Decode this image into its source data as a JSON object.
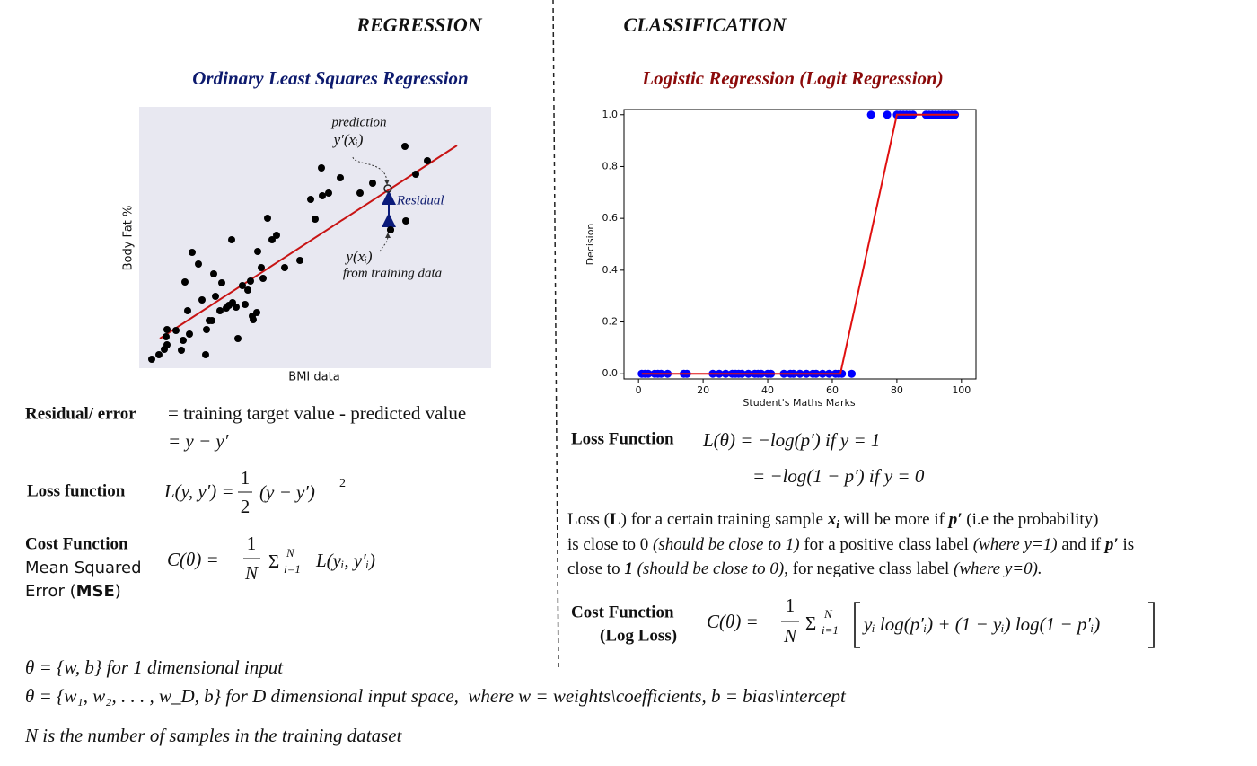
{
  "headers": {
    "left": "REGRESSION",
    "right": "CLASSIFICATION"
  },
  "chart_data": [
    {
      "type": "scatter",
      "title": "Ordinary Least Squares Regression",
      "x_label": "BMI data",
      "y_label": "Body Fat %",
      "xlim": [
        0,
        392
      ],
      "ylim": [
        0,
        291
      ],
      "background": "#e8e8f1",
      "color": "#000000",
      "x": [
        14,
        22,
        28,
        31,
        30,
        31,
        41,
        47,
        49,
        56,
        54,
        51,
        59,
        66,
        70,
        75,
        74,
        78,
        81,
        85,
        83,
        90,
        92,
        97,
        100,
        103,
        104,
        108,
        110,
        115,
        118,
        121,
        124,
        126,
        127,
        131,
        132,
        136,
        138,
        143,
        148,
        153,
        162,
        179,
        191,
        196,
        203,
        204,
        211,
        224,
        246,
        260,
        280,
        296,
        297,
        308,
        321
      ],
      "values": [
        10,
        15,
        21,
        26,
        35,
        43,
        42,
        20,
        31,
        38,
        64,
        96,
        129,
        116,
        76,
        43,
        15,
        53,
        53,
        80,
        105,
        64,
        95,
        67,
        70,
        143,
        73,
        68,
        33,
        92,
        71,
        87,
        97,
        58,
        54,
        62,
        130,
        112,
        100,
        167,
        143,
        148,
        112,
        120,
        188,
        166,
        223,
        192,
        195,
        212,
        195,
        206,
        154,
        247,
        164,
        216,
        231
      ],
      "fit_line": {
        "color": "#c81414",
        "x": [
          23,
          354
        ],
        "values": [
          33,
          248
        ]
      },
      "annotations": [
        "prediction",
        "y′(xᵢ)",
        "Residual",
        "y(xᵢ)",
        "from training data"
      ]
    },
    {
      "type": "scatter",
      "title": "Logistic Regression (Logit Regression)",
      "x_label": "Student's Maths Marks",
      "y_label": "Decision",
      "xlim": [
        -4.5,
        104.5
      ],
      "ylim": [
        -0.02,
        1.02
      ],
      "xticks": [
        0,
        20,
        40,
        60,
        80,
        100
      ],
      "yticks": [
        {
          "value": 0,
          "label": "0.0"
        },
        {
          "value": 0.2,
          "label": "0.2"
        },
        {
          "value": 0.4,
          "label": "0.4"
        },
        {
          "value": 0.6,
          "label": "0.6"
        },
        {
          "value": 0.8,
          "label": "0.8"
        },
        {
          "value": 1,
          "label": "1.0"
        }
      ],
      "color": "#0000ff",
      "x": [
        1,
        2,
        3,
        5,
        6,
        7,
        9,
        14,
        15,
        23,
        25,
        27,
        29,
        30,
        31,
        32,
        34,
        36,
        37,
        38,
        40,
        41,
        45,
        47,
        48,
        50,
        52,
        54,
        55,
        57,
        59,
        61,
        62,
        63,
        66,
        72,
        77,
        80,
        81,
        82,
        83,
        84,
        85,
        89,
        90,
        91,
        92,
        93,
        94,
        95,
        96,
        97,
        98
      ],
      "values": [
        0,
        0,
        0,
        0,
        0,
        0,
        0,
        0,
        0,
        0,
        0,
        0,
        0,
        0,
        0,
        0,
        0,
        0,
        0,
        0,
        0,
        0,
        0,
        0,
        0,
        0,
        0,
        0,
        0,
        0,
        0,
        0,
        0,
        0,
        0,
        1,
        1,
        1,
        1,
        1,
        1,
        1,
        1,
        1,
        1,
        1,
        1,
        1,
        1,
        1,
        1,
        1,
        1
      ],
      "fit_line": {
        "color": "#e01010",
        "x": [
          1,
          62.5,
          80,
          99
        ],
        "values": [
          0,
          0,
          1,
          1
        ]
      }
    }
  ],
  "left": {
    "residual": {
      "label": "Residual/ error",
      "line1": "= training target value - predicted value",
      "line2": "= y − y′"
    },
    "loss": {
      "label": "Loss function",
      "lhs": "L(y, y′) =",
      "num": "1",
      "den": "2",
      "rhs": "(y − y′)",
      "power": "2"
    },
    "cost": {
      "label": "Cost Function",
      "sub1": "Mean Squared",
      "sub2": [
        "Error (",
        "MSE",
        ")"
      ],
      "lhs": "C(θ) =",
      "num": "1",
      "den": "N",
      "sum": "Σ",
      "upper": "N",
      "lower": "i=1",
      "rhs": "L(yᵢ, y′ᵢ)"
    }
  },
  "right": {
    "loss": {
      "label": "Loss Function",
      "line1": "L(θ) = −log(p′) if y = 1",
      "line2": "= −log(1 − p′) if y = 0"
    },
    "paragraph": [
      [
        "Loss (",
        "L",
        ") for a certain training sample ",
        "x",
        "i",
        " will be more if ",
        "p′",
        " (i.e the probability)"
      ],
      [
        "is close to 0 ",
        "(should be close to 1)",
        " for a positive class label ",
        "(where y=1)",
        " and if ",
        "p′",
        " is"
      ],
      [
        "close to ",
        "1",
        " (should be close to 0)",
        ", for negative class label ",
        "(where y=0)."
      ]
    ],
    "cost": {
      "label": "Cost Function",
      "label2": "(Log Loss)",
      "lhs": "C(θ) =",
      "num": "1",
      "den": "N",
      "sum": "Σ",
      "upper": "N",
      "lower": "i=1",
      "rhs": "yᵢ log(p′ᵢ) + (1 − yᵢ) log(1 − p′ᵢ)"
    }
  },
  "footer": [
    "θ = {w, b} for 1 dimensional input",
    "θ = {w₁, w₂, . . . , w_D, b} for D dimensional input space,  where w = weights\\coefficients, b = bias\\intercept",
    "N is the number of samples in the training dataset"
  ]
}
